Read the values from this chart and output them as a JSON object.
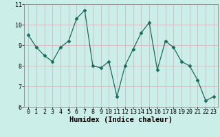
{
  "x": [
    0,
    1,
    2,
    3,
    4,
    5,
    6,
    7,
    8,
    9,
    10,
    11,
    12,
    13,
    14,
    15,
    16,
    17,
    18,
    19,
    20,
    21,
    22,
    23
  ],
  "y": [
    9.5,
    8.9,
    8.5,
    8.2,
    8.9,
    9.2,
    10.3,
    10.7,
    8.0,
    7.9,
    8.2,
    6.5,
    8.0,
    8.8,
    9.6,
    10.1,
    7.8,
    9.2,
    8.9,
    8.2,
    8.0,
    7.3,
    6.3,
    6.5
  ],
  "xlim": [
    -0.5,
    23.5
  ],
  "ylim": [
    6,
    11
  ],
  "yticks": [
    6,
    7,
    8,
    9,
    10,
    11
  ],
  "xticks": [
    0,
    1,
    2,
    3,
    4,
    5,
    6,
    7,
    8,
    9,
    10,
    11,
    12,
    13,
    14,
    15,
    16,
    17,
    18,
    19,
    20,
    21,
    22,
    23
  ],
  "xlabel": "Humidex (Indice chaleur)",
  "line_color": "#1a6b5a",
  "marker": "D",
  "marker_size": 2.5,
  "background_color": "#cceee8",
  "grid_color": "#ccbbbb",
  "tick_fontsize": 6,
  "xlabel_fontsize": 7.5,
  "spine_color": "#888888"
}
